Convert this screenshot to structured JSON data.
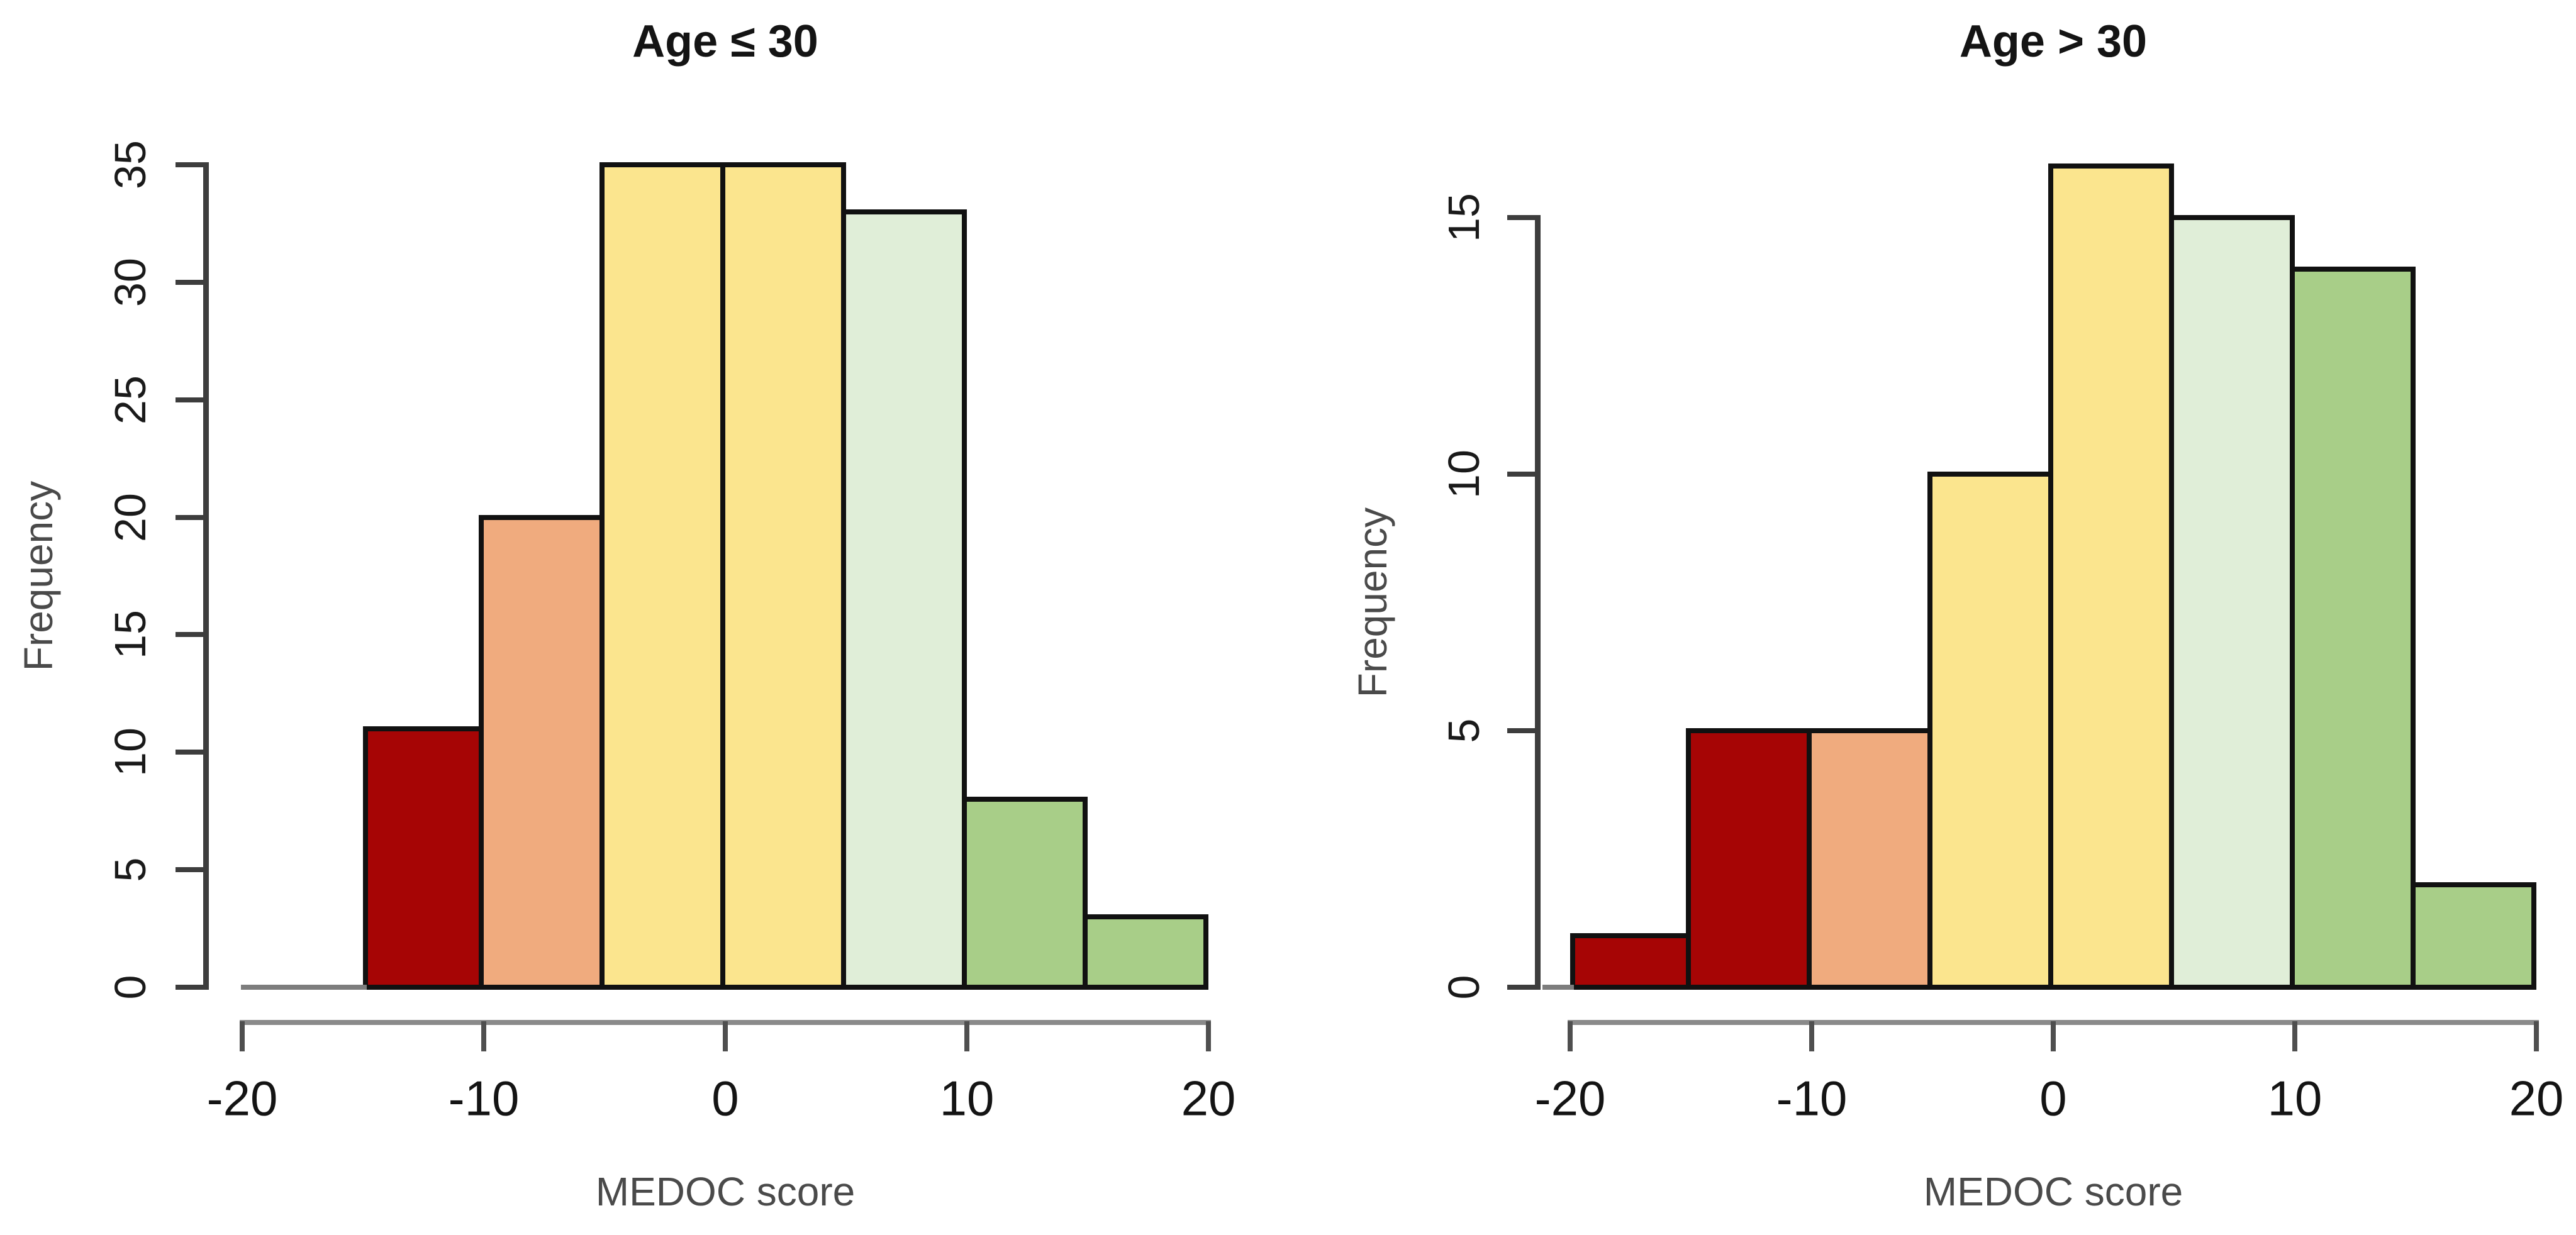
{
  "figure": {
    "background": "#ffffff"
  },
  "palette": {
    "dark_red": "#A60505",
    "salmon": "#F0AB7E",
    "yellow": "#FBE58E",
    "pale_green": "#E0EED8",
    "green": "#A8CE88",
    "bar_border": "#111111",
    "y_axis_color": "#3d3d3d",
    "x_axis_line_color": "#8a8a8a",
    "tick_color": "#4f4f4f",
    "zero_line_color": "#7d7d7d",
    "tick_text_color": "#141414",
    "label_text_color": "#4a4a4a"
  },
  "chart_data": [
    {
      "type": "bar",
      "subtype": "histogram",
      "title": "Age ≤ 30",
      "xlabel": "MEDOC score",
      "ylabel": "Frequency",
      "xlim": [
        -20,
        20
      ],
      "ylim": [
        0,
        35
      ],
      "x_ticks": [
        -20,
        -10,
        0,
        10,
        20
      ],
      "y_ticks": [
        0,
        5,
        10,
        15,
        20,
        25,
        30,
        35
      ],
      "bin_width": 5,
      "grid": "off",
      "legend": "none",
      "bins": [
        {
          "x0": -15,
          "x1": -10,
          "count": 11,
          "color": "dark_red"
        },
        {
          "x0": -10,
          "x1": -5,
          "count": 20,
          "color": "salmon"
        },
        {
          "x0": -5,
          "x1": 0,
          "count": 35,
          "color": "yellow"
        },
        {
          "x0": 0,
          "x1": 5,
          "count": 35,
          "color": "yellow"
        },
        {
          "x0": 5,
          "x1": 10,
          "count": 33,
          "color": "pale_green"
        },
        {
          "x0": 10,
          "x1": 15,
          "count": 8,
          "color": "green"
        },
        {
          "x0": 15,
          "x1": 20,
          "count": 3,
          "color": "green"
        }
      ]
    },
    {
      "type": "bar",
      "subtype": "histogram",
      "title": "Age > 30",
      "xlabel": "MEDOC score",
      "ylabel": "Frequency",
      "xlim": [
        -20,
        20
      ],
      "ylim": [
        0,
        16
      ],
      "x_ticks": [
        -20,
        -10,
        0,
        10,
        20
      ],
      "y_ticks": [
        0,
        5,
        10,
        15
      ],
      "bin_width": 5,
      "grid": "off",
      "legend": "none",
      "bins": [
        {
          "x0": -20,
          "x1": -15,
          "count": 1,
          "color": "dark_red"
        },
        {
          "x0": -15,
          "x1": -10,
          "count": 5,
          "color": "dark_red"
        },
        {
          "x0": -10,
          "x1": -5,
          "count": 5,
          "color": "salmon"
        },
        {
          "x0": -5,
          "x1": 0,
          "count": 10,
          "color": "yellow"
        },
        {
          "x0": 0,
          "x1": 5,
          "count": 16,
          "color": "yellow"
        },
        {
          "x0": 5,
          "x1": 10,
          "count": 15,
          "color": "pale_green"
        },
        {
          "x0": 10,
          "x1": 15,
          "count": 14,
          "color": "green"
        },
        {
          "x0": 15,
          "x1": 20,
          "count": 2,
          "color": "green"
        }
      ]
    }
  ]
}
